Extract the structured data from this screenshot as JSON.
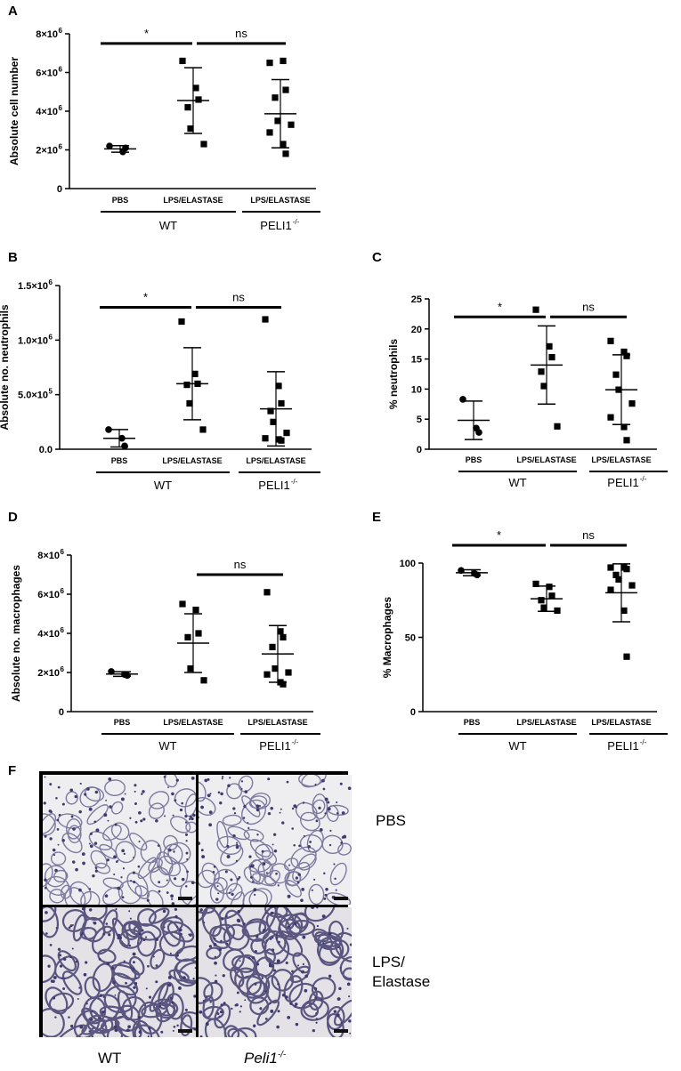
{
  "panels": {
    "a": "A",
    "b": "B",
    "c": "C",
    "d": "D",
    "e": "E",
    "f": "F"
  },
  "groups": {
    "wt": "WT",
    "peli_base": "PELI1",
    "peli_sup": "-/-"
  },
  "chart_data": [
    {
      "id": "A",
      "type": "scatter",
      "ylabel": "Absolute cell number",
      "categories": [
        "PBS",
        "LPS/ELASTASE",
        "LPS/ELASTASE"
      ],
      "markers": [
        "circle",
        "square",
        "square"
      ],
      "ylim": [
        0,
        8000000
      ],
      "yticks": [
        0,
        2000000,
        4000000,
        6000000,
        8000000
      ],
      "yticklabels": [
        "0",
        "2×10",
        "4×10",
        "6×10",
        "8×10"
      ],
      "ytickexp": [
        "",
        "6",
        "6",
        "6",
        "6"
      ],
      "points": [
        [
          2200000,
          1900000,
          2100000
        ],
        [
          6600000,
          5200000,
          4600000,
          4200000,
          3100000,
          2300000
        ],
        [
          6500000,
          6600000,
          5100000,
          4700000,
          3500000,
          3300000,
          2900000,
          2300000,
          1800000
        ]
      ],
      "mean": [
        2050000,
        4550000,
        3870000
      ],
      "sd": [
        170000,
        1700000,
        1760000
      ],
      "comparisons": [
        {
          "from": 0,
          "to": 1,
          "label": "*",
          "y": 7500000
        },
        {
          "from": 1,
          "to": 2,
          "label": "ns",
          "y": 7500000
        }
      ]
    },
    {
      "id": "B",
      "type": "scatter",
      "ylabel": "Absolute no. neutrophils",
      "categories": [
        "PBS",
        "LPS/ELASTASE",
        "LPS/ELASTASE"
      ],
      "markers": [
        "circle",
        "square",
        "square"
      ],
      "ylim": [
        0,
        1500000
      ],
      "yticks": [
        0,
        500000,
        1000000,
        1500000
      ],
      "yticklabels": [
        "0.0",
        "5.0×10",
        "1.0×10",
        "1.5×10"
      ],
      "ytickexp": [
        "",
        "5",
        "6",
        "6"
      ],
      "points": [
        [
          180000,
          100000,
          30000
        ],
        [
          1170000,
          690000,
          600000,
          590000,
          420000,
          180000
        ],
        [
          1190000,
          580000,
          420000,
          350000,
          250000,
          150000,
          100000,
          90000,
          80000
        ]
      ],
      "mean": [
        100000,
        600000,
        370000
      ],
      "sd": [
        80000,
        330000,
        340000
      ],
      "comparisons": [
        {
          "from": 0,
          "to": 1,
          "label": "*",
          "y": 1300000
        },
        {
          "from": 1,
          "to": 2,
          "label": "ns",
          "y": 1300000
        }
      ]
    },
    {
      "id": "C",
      "type": "scatter",
      "ylabel": "% neutrophils",
      "categories": [
        "PBS",
        "LPS/ELASTASE",
        "LPS/ELASTASE"
      ],
      "markers": [
        "circle",
        "square",
        "square"
      ],
      "ylim": [
        0,
        25
      ],
      "yticks": [
        0,
        5,
        10,
        15,
        20,
        25
      ],
      "yticklabels": [
        "0",
        "5",
        "10",
        "15",
        "20",
        "25"
      ],
      "ytickexp": [
        "",
        "",
        "",
        "",
        "",
        ""
      ],
      "points": [
        [
          8.3,
          3.5,
          2.8
        ],
        [
          23.2,
          17.1,
          15.3,
          12.9,
          10.5,
          3.8
        ],
        [
          18,
          16.2,
          15.5,
          12.4,
          9.9,
          7.6,
          5.3,
          3.7,
          1.5
        ]
      ],
      "mean": [
        4.8,
        14.0,
        9.9
      ],
      "sd": [
        3.2,
        6.5,
        5.8
      ],
      "comparisons": [
        {
          "from": 0,
          "to": 1,
          "label": "*",
          "y": 22
        },
        {
          "from": 1,
          "to": 2,
          "label": "ns",
          "y": 22
        }
      ]
    },
    {
      "id": "D",
      "type": "scatter",
      "ylabel": "Absolute no. macrophages",
      "categories": [
        "PBS",
        "LPS/ELASTASE",
        "LPS/ELASTASE"
      ],
      "markers": [
        "circle",
        "square",
        "square"
      ],
      "ylim": [
        0,
        8000000
      ],
      "yticks": [
        0,
        2000000,
        4000000,
        6000000,
        8000000
      ],
      "yticklabels": [
        "0",
        "2×10",
        "4×10",
        "6×10",
        "8×10"
      ],
      "ytickexp": [
        "",
        "6",
        "6",
        "6",
        "6"
      ],
      "points": [
        [
          2050000,
          1900000,
          1850000
        ],
        [
          5500000,
          5200000,
          4000000,
          3800000,
          2200000,
          1600000
        ],
        [
          6100000,
          4100000,
          3800000,
          3300000,
          2200000,
          2000000,
          1900000,
          1500000,
          1400000
        ]
      ],
      "mean": [
        1920000,
        3500000,
        2950000
      ],
      "sd": [
        120000,
        1500000,
        1450000
      ],
      "comparisons": [
        {
          "from": 1,
          "to": 2,
          "label": "ns",
          "y": 7000000
        }
      ]
    },
    {
      "id": "E",
      "type": "scatter",
      "ylabel": "% Macrophages",
      "categories": [
        "PBS",
        "LPS/ELASTASE",
        "LPS/ELASTASE"
      ],
      "markers": [
        "circle",
        "square",
        "square"
      ],
      "ylim": [
        0,
        100
      ],
      "yticks": [
        0,
        50,
        100
      ],
      "yticklabels": [
        "0",
        "50",
        "100"
      ],
      "ytickexp": [
        "",
        "",
        ""
      ],
      "points": [
        [
          95,
          93,
          92
        ],
        [
          86,
          84,
          78,
          75,
          70,
          68
        ],
        [
          97,
          97,
          96,
          92,
          89,
          85,
          82,
          68,
          37
        ]
      ],
      "mean": [
        93.5,
        76,
        80
      ],
      "sd": [
        2,
        8.5,
        19.5
      ],
      "comparisons": [
        {
          "from": 0,
          "to": 1,
          "label": "*",
          "y": 112
        },
        {
          "from": 1,
          "to": 2,
          "label": "ns",
          "y": 112
        }
      ]
    }
  ],
  "histology": {
    "row_labels": [
      "PBS",
      "LPS/",
      "Elastase"
    ],
    "col_labels": [
      "WT",
      "Peli1",
      "-/-"
    ]
  }
}
